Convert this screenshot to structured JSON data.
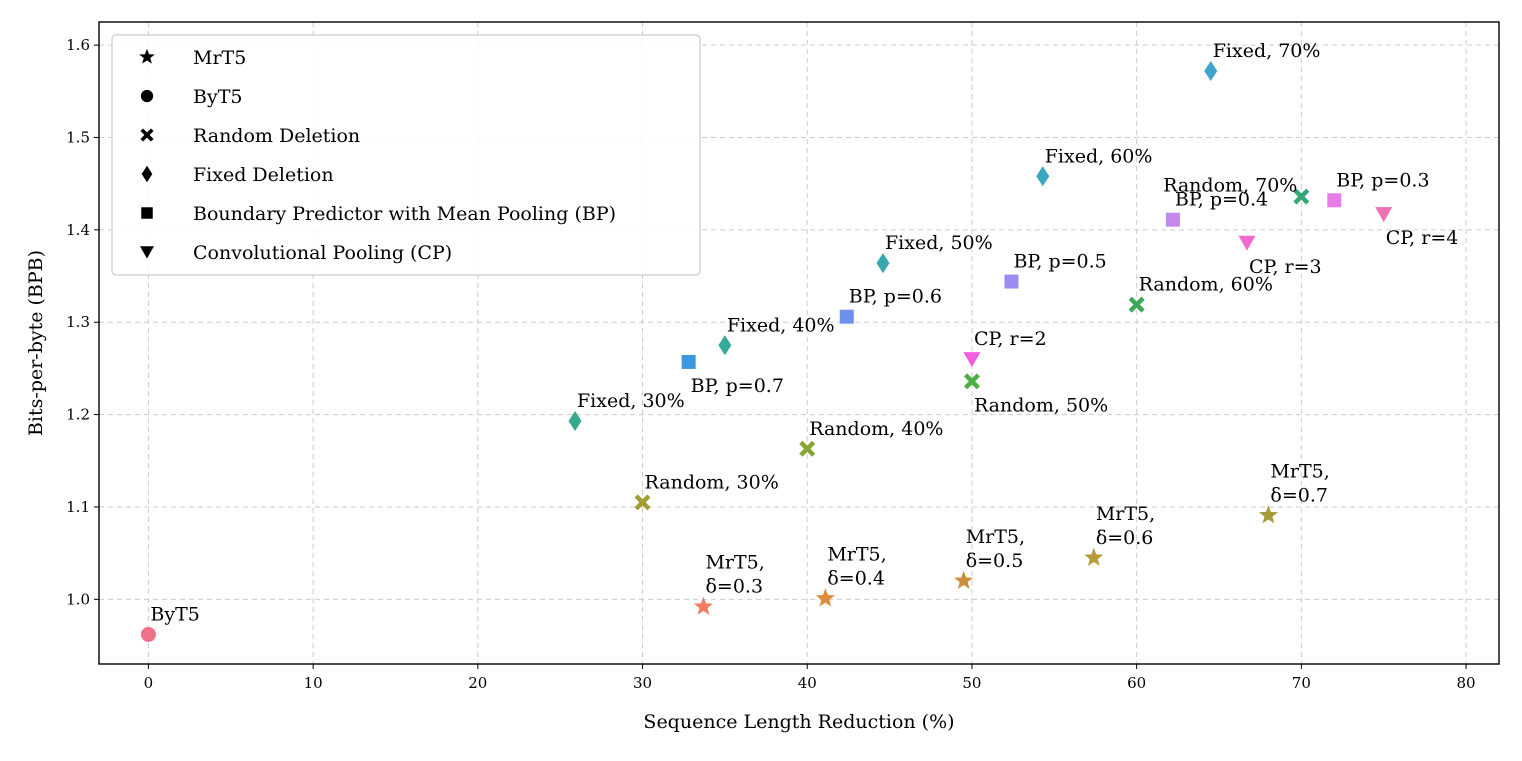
{
  "chart_data": {
    "type": "scatter",
    "title": "",
    "xlabel": "Sequence Length Reduction (%)",
    "ylabel": "Bits-per-byte (BPB)",
    "xlim": [
      -3,
      82
    ],
    "ylim": [
      0.93,
      1.625
    ],
    "xticks": [
      0,
      10,
      20,
      30,
      40,
      50,
      60,
      70,
      80
    ],
    "yticks": [
      1.0,
      1.1,
      1.2,
      1.3,
      1.4,
      1.5,
      1.6
    ],
    "grid": true,
    "legend_position": "top-left",
    "legend": [
      {
        "label": "MrT5",
        "marker": "star"
      },
      {
        "label": "ByT5",
        "marker": "circle"
      },
      {
        "label": "Random Deletion",
        "marker": "x"
      },
      {
        "label": "Fixed Deletion",
        "marker": "diamond"
      },
      {
        "label": "Boundary Predictor with Mean Pooling (BP)",
        "marker": "square"
      },
      {
        "label": "Convolutional Pooling (CP)",
        "marker": "triangle"
      }
    ],
    "points": [
      {
        "group": "ByT5",
        "marker": "circle",
        "x": 0,
        "y": 0.962,
        "color": "#f0708a",
        "label": [
          "ByT5"
        ],
        "anchor": "above-right"
      },
      {
        "group": "MrT5",
        "marker": "star",
        "x": 33.7,
        "y": 0.992,
        "color": "#f57a5f",
        "label": [
          "MrT5,",
          "δ=0.3"
        ],
        "anchor": "above-right"
      },
      {
        "group": "MrT5",
        "marker": "star",
        "x": 41.1,
        "y": 1.001,
        "color": "#e08a3c",
        "label": [
          "MrT5,",
          "δ=0.4"
        ],
        "anchor": "above-right"
      },
      {
        "group": "MrT5",
        "marker": "star",
        "x": 49.5,
        "y": 1.02,
        "color": "#cf8f3a",
        "label": [
          "MrT5,",
          "δ=0.5"
        ],
        "anchor": "above-right"
      },
      {
        "group": "MrT5",
        "marker": "star",
        "x": 57.4,
        "y": 1.045,
        "color": "#b99a3a",
        "label": [
          "MrT5,",
          "δ=0.6"
        ],
        "anchor": "above-right"
      },
      {
        "group": "MrT5",
        "marker": "star",
        "x": 68.0,
        "y": 1.091,
        "color": "#a59a3b",
        "label": [
          "MrT5,",
          "δ=0.7"
        ],
        "anchor": "above-right"
      },
      {
        "group": "Random",
        "marker": "x",
        "x": 30.0,
        "y": 1.105,
        "color": "#a39d35",
        "label": [
          "Random, 30%"
        ],
        "anchor": "above-right"
      },
      {
        "group": "Random",
        "marker": "x",
        "x": 40.0,
        "y": 1.163,
        "color": "#86a536",
        "label": [
          "Random, 40%"
        ],
        "anchor": "above-right"
      },
      {
        "group": "Random",
        "marker": "x",
        "x": 50.0,
        "y": 1.236,
        "color": "#4fae44",
        "label": [
          "Random, 50%"
        ],
        "anchor": "below-right"
      },
      {
        "group": "Random",
        "marker": "x",
        "x": 60.0,
        "y": 1.319,
        "color": "#3ba85a",
        "label": [
          "Random, 60%"
        ],
        "anchor": "above-right"
      },
      {
        "group": "Random",
        "marker": "x",
        "x": 70.0,
        "y": 1.436,
        "color": "#33a877",
        "label": [
          "Random, 70%"
        ],
        "anchor": "above-left"
      },
      {
        "group": "Fixed",
        "marker": "diamond",
        "x": 25.9,
        "y": 1.193,
        "color": "#36a88e",
        "label": [
          "Fixed, 30%"
        ],
        "anchor": "above-right"
      },
      {
        "group": "Fixed",
        "marker": "diamond",
        "x": 35.0,
        "y": 1.275,
        "color": "#36a99c",
        "label": [
          "Fixed, 40%"
        ],
        "anchor": "above-right"
      },
      {
        "group": "Fixed",
        "marker": "diamond",
        "x": 44.6,
        "y": 1.364,
        "color": "#38a8b0",
        "label": [
          "Fixed, 50%"
        ],
        "anchor": "above-right"
      },
      {
        "group": "Fixed",
        "marker": "diamond",
        "x": 54.3,
        "y": 1.458,
        "color": "#3aa6c0",
        "label": [
          "Fixed, 60%"
        ],
        "anchor": "above-right"
      },
      {
        "group": "Fixed",
        "marker": "diamond",
        "x": 64.5,
        "y": 1.572,
        "color": "#3ea4cc",
        "label": [
          "Fixed, 70%"
        ],
        "anchor": "above-right"
      },
      {
        "group": "BP",
        "marker": "square",
        "x": 32.8,
        "y": 1.257,
        "color": "#3b97e0",
        "label": [
          "BP, p=0.7"
        ],
        "anchor": "below-right"
      },
      {
        "group": "BP",
        "marker": "square",
        "x": 42.4,
        "y": 1.306,
        "color": "#6e90ec",
        "label": [
          "BP, p=0.6"
        ],
        "anchor": "above-right"
      },
      {
        "group": "BP",
        "marker": "square",
        "x": 52.4,
        "y": 1.344,
        "color": "#9b8cf0",
        "label": [
          "BP, p=0.5"
        ],
        "anchor": "above-right"
      },
      {
        "group": "BP",
        "marker": "square",
        "x": 62.2,
        "y": 1.411,
        "color": "#c487ee",
        "label": [
          "BP, p=0.4"
        ],
        "anchor": "above-right"
      },
      {
        "group": "BP",
        "marker": "square",
        "x": 72.0,
        "y": 1.432,
        "color": "#e77ce6",
        "label": [
          "BP, p=0.3"
        ],
        "anchor": "above-right"
      },
      {
        "group": "CP",
        "marker": "triangle",
        "x": 50.0,
        "y": 1.26,
        "color": "#f25ee0",
        "label": [
          "CP, r=2"
        ],
        "anchor": "above-right"
      },
      {
        "group": "CP",
        "marker": "triangle",
        "x": 66.7,
        "y": 1.386,
        "color": "#f16bcf",
        "label": [
          "CP, r=3"
        ],
        "anchor": "below-right"
      },
      {
        "group": "CP",
        "marker": "triangle",
        "x": 75.0,
        "y": 1.417,
        "color": "#ee70b5",
        "label": [
          "CP, r=4"
        ],
        "anchor": "below-right"
      }
    ]
  }
}
